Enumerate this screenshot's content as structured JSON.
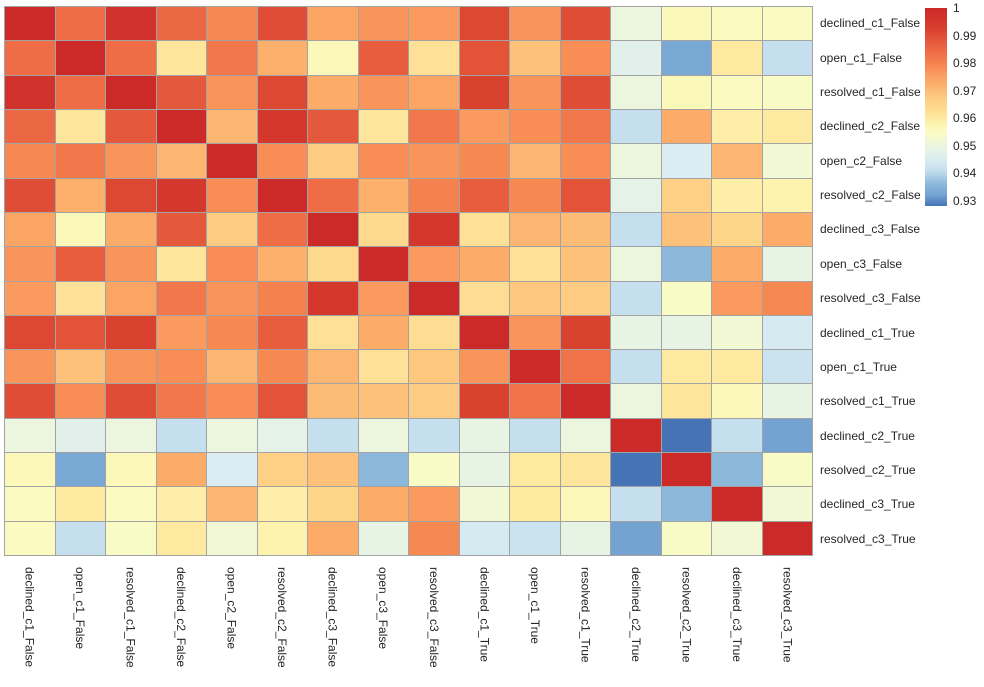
{
  "figure": {
    "background": "#ffffff",
    "grid_line_color": "#a3a3a3",
    "label_color": "#262626"
  },
  "chart_data": {
    "type": "heatmap",
    "title": "",
    "xlabel": "",
    "ylabel": "",
    "grid": true,
    "legend_position": "right",
    "labels": [
      "declined_c1_False",
      "open_c1_False",
      "resolved_c1_False",
      "declined_c2_False",
      "open_c2_False",
      "resolved_c2_False",
      "declined_c3_False",
      "open_c3_False",
      "resolved_c3_False",
      "declined_c1_True",
      "open_c1_True",
      "resolved_c1_True",
      "declined_c2_True",
      "resolved_c2_True",
      "declined_c3_True",
      "resolved_c3_True"
    ],
    "matrix": [
      [
        1.0,
        0.984,
        0.997,
        0.985,
        0.979,
        0.99,
        0.974,
        0.977,
        0.976,
        0.991,
        0.977,
        0.99,
        0.95,
        0.956,
        0.955,
        0.955
      ],
      [
        0.984,
        1.0,
        0.984,
        0.961,
        0.982,
        0.972,
        0.956,
        0.987,
        0.962,
        0.989,
        0.969,
        0.978,
        0.947,
        0.933,
        0.96,
        0.941
      ],
      [
        0.997,
        0.984,
        1.0,
        0.988,
        0.977,
        0.991,
        0.973,
        0.977,
        0.974,
        0.992,
        0.977,
        0.99,
        0.95,
        0.956,
        0.955,
        0.954
      ],
      [
        0.985,
        0.961,
        0.988,
        1.0,
        0.971,
        0.995,
        0.988,
        0.961,
        0.982,
        0.976,
        0.978,
        0.982,
        0.941,
        0.973,
        0.959,
        0.96
      ],
      [
        0.979,
        0.982,
        0.977,
        0.971,
        1.0,
        0.978,
        0.967,
        0.978,
        0.977,
        0.979,
        0.971,
        0.978,
        0.95,
        0.945,
        0.971,
        0.952
      ],
      [
        0.99,
        0.972,
        0.991,
        0.995,
        0.978,
        1.0,
        0.984,
        0.972,
        0.98,
        0.987,
        0.979,
        0.989,
        0.948,
        0.966,
        0.959,
        0.958
      ],
      [
        0.974,
        0.956,
        0.973,
        0.988,
        0.967,
        0.984,
        1.0,
        0.964,
        0.995,
        0.962,
        0.971,
        0.97,
        0.941,
        0.969,
        0.965,
        0.973
      ],
      [
        0.977,
        0.987,
        0.977,
        0.961,
        0.978,
        0.972,
        0.964,
        1.0,
        0.976,
        0.973,
        0.962,
        0.969,
        0.95,
        0.936,
        0.973,
        0.949
      ],
      [
        0.976,
        0.962,
        0.974,
        0.982,
        0.977,
        0.98,
        0.995,
        0.976,
        1.0,
        0.963,
        0.968,
        0.967,
        0.941,
        0.954,
        0.976,
        0.979
      ],
      [
        0.991,
        0.989,
        0.992,
        0.976,
        0.979,
        0.987,
        0.962,
        0.973,
        0.963,
        1.0,
        0.977,
        0.992,
        0.949,
        0.949,
        0.952,
        0.944
      ],
      [
        0.977,
        0.969,
        0.977,
        0.978,
        0.971,
        0.979,
        0.971,
        0.962,
        0.968,
        0.977,
        1.0,
        0.983,
        0.941,
        0.96,
        0.96,
        0.942
      ],
      [
        0.99,
        0.978,
        0.99,
        0.982,
        0.978,
        0.989,
        0.97,
        0.969,
        0.967,
        0.992,
        0.983,
        1.0,
        0.95,
        0.961,
        0.956,
        0.949
      ],
      [
        0.95,
        0.947,
        0.95,
        0.941,
        0.95,
        0.948,
        0.941,
        0.95,
        0.941,
        0.949,
        0.941,
        0.95,
        1.0,
        0.928,
        0.941,
        0.932
      ],
      [
        0.956,
        0.933,
        0.956,
        0.973,
        0.945,
        0.966,
        0.969,
        0.936,
        0.954,
        0.949,
        0.96,
        0.961,
        0.928,
        1.0,
        0.936,
        0.954
      ],
      [
        0.955,
        0.96,
        0.955,
        0.959,
        0.971,
        0.959,
        0.965,
        0.973,
        0.976,
        0.952,
        0.96,
        0.956,
        0.941,
        0.936,
        1.0,
        0.952
      ],
      [
        0.955,
        0.941,
        0.954,
        0.96,
        0.952,
        0.958,
        0.973,
        0.949,
        0.979,
        0.944,
        0.942,
        0.949,
        0.932,
        0.954,
        0.952,
        1.0
      ]
    ],
    "value_range": [
      0.928,
      1.0
    ],
    "colorbar": {
      "tick_labels": [
        "1",
        "0.99",
        "0.98",
        "0.97",
        "0.96",
        "0.95",
        "0.94",
        "0.93"
      ],
      "tick_values": [
        1,
        0.99,
        0.98,
        0.97,
        0.96,
        0.95,
        0.94,
        0.93
      ],
      "gradient_stops": [
        {
          "v": 0.928,
          "c": "#4673b5"
        },
        {
          "v": 0.932,
          "c": "#74a3d1"
        },
        {
          "v": 0.936,
          "c": "#8cb8dc"
        },
        {
          "v": 0.941,
          "c": "#c6dfee"
        },
        {
          "v": 0.945,
          "c": "#dbedf2"
        },
        {
          "v": 0.948,
          "c": "#e5f2e7"
        },
        {
          "v": 0.951,
          "c": "#eff7da"
        },
        {
          "v": 0.954,
          "c": "#f9fbc7"
        },
        {
          "v": 0.957,
          "c": "#fdf7b4"
        },
        {
          "v": 0.96,
          "c": "#fee9a1"
        },
        {
          "v": 0.964,
          "c": "#fdd98d"
        },
        {
          "v": 0.968,
          "c": "#fdc77e"
        },
        {
          "v": 0.972,
          "c": "#fcb06c"
        },
        {
          "v": 0.976,
          "c": "#fa9a5e"
        },
        {
          "v": 0.98,
          "c": "#f5824e"
        },
        {
          "v": 0.984,
          "c": "#ee6c46"
        },
        {
          "v": 0.988,
          "c": "#e4583b"
        },
        {
          "v": 0.992,
          "c": "#da4230"
        },
        {
          "v": 0.996,
          "c": "#d2342c"
        },
        {
          "v": 1.0,
          "c": "#cc2a28"
        }
      ]
    }
  }
}
